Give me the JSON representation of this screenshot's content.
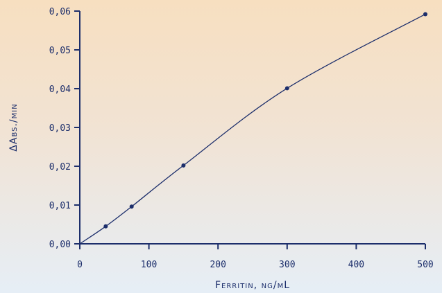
{
  "chart_data": {
    "type": "line",
    "title": "",
    "xlabel": "Ferritin, ng/mL",
    "ylabel": "ΔAbs./min",
    "xlim": [
      0,
      500
    ],
    "ylim": [
      0,
      0.06
    ],
    "x_ticks": [
      "0",
      "100",
      "200",
      "300",
      "400",
      "500"
    ],
    "y_ticks": [
      "0,00",
      "0,01",
      "0,02",
      "0,03",
      "0,04",
      "0,05",
      "0,06"
    ],
    "series": [
      {
        "points": [
          {
            "x": 0,
            "y": 0.0
          },
          {
            "x": 37.5,
            "y": 0.0045
          },
          {
            "x": 75,
            "y": 0.0096
          },
          {
            "x": 150,
            "y": 0.0202
          },
          {
            "x": 300,
            "y": 0.0401
          },
          {
            "x": 500,
            "y": 0.0592
          }
        ]
      }
    ],
    "colors": {
      "axis": "#1c2e6b",
      "line": "#1c2e6b",
      "marker": "#1c2e6b",
      "text": "#1c2e6b"
    },
    "grid": false,
    "legend": "none"
  }
}
